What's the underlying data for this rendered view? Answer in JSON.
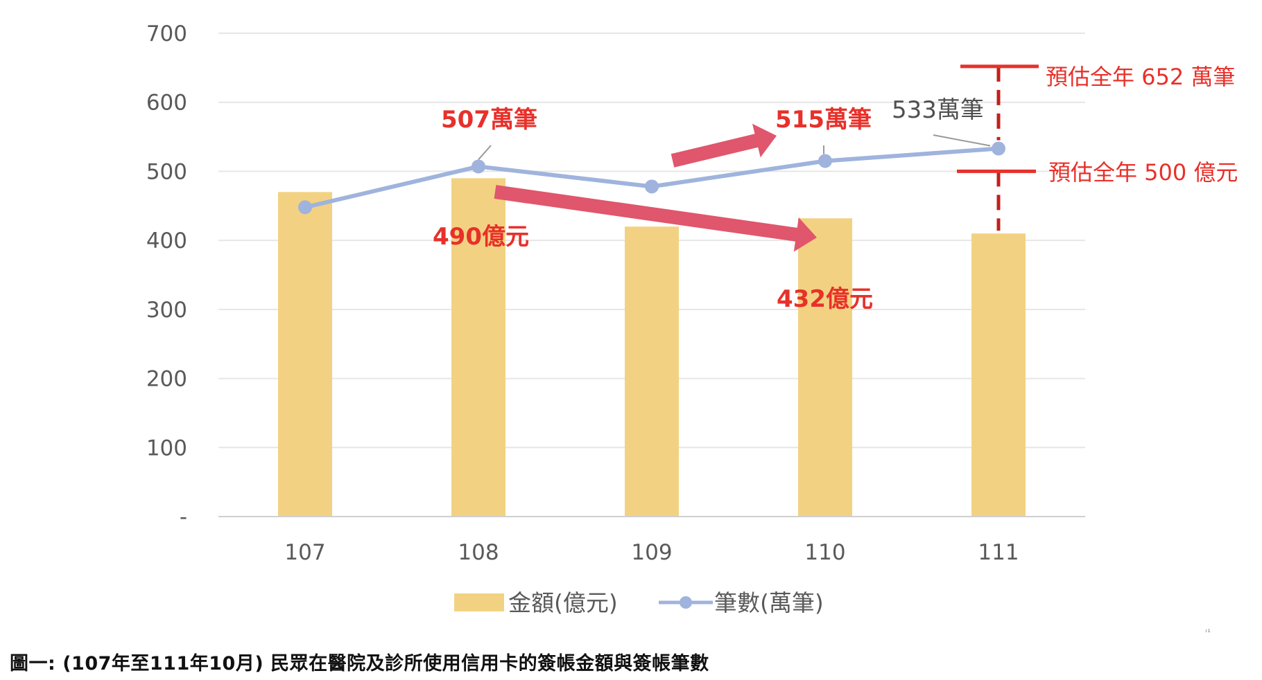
{
  "chart_data": {
    "type": "bar",
    "categories": [
      "107",
      "108",
      "109",
      "110",
      "111"
    ],
    "series": [
      {
        "name": "金額(億元)",
        "type": "bar",
        "color": "#f2d282",
        "values": [
          470,
          490,
          420,
          432,
          410
        ]
      },
      {
        "name": "筆數(萬筆)",
        "type": "line",
        "color": "#9fb3dd",
        "values": [
          448,
          507,
          478,
          515,
          533
        ]
      }
    ],
    "y_ticks": [
      "-",
      "100",
      "200",
      "300",
      "400",
      "500",
      "600",
      "700"
    ],
    "ylim": [
      0,
      700
    ],
    "grid": true,
    "legend_position": "bottom",
    "annotations": {
      "count_108": "507萬筆",
      "count_110": "515萬筆",
      "count_111": "533萬筆",
      "amount_108": "490億元",
      "amount_110": "432億元",
      "est_count": "預估全年 652 萬筆",
      "est_amount": "預估全年 500 億元",
      "est_count_value": 652,
      "est_amount_value": 500
    },
    "accent_color": "#e8302a",
    "arrow_color": "#e0566c"
  },
  "caption": "圖一: (107年至111年10月) 民眾在醫院及診所使用信用卡的簽帳金額與簽帳筆數",
  "stray_mark": "ᶦ¹"
}
